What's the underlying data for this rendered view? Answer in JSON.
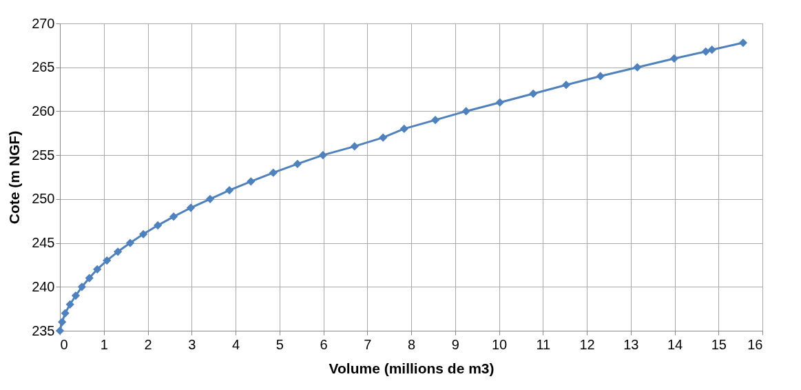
{
  "chart_data": {
    "type": "line",
    "xlabel": "Volume (millions de m3)",
    "ylabel": "Cote (m NGF)",
    "x": [
      0,
      0.05,
      0.12,
      0.23,
      0.36,
      0.5,
      0.67,
      0.85,
      1.07,
      1.32,
      1.6,
      1.9,
      2.23,
      2.59,
      2.98,
      3.42,
      3.86,
      4.35,
      4.86,
      5.41,
      5.99,
      6.71,
      7.36,
      7.84,
      8.55,
      9.25,
      10.02,
      10.78,
      11.53,
      12.31,
      13.15,
      13.99,
      14.71,
      14.85,
      15.56
    ],
    "series": [
      {
        "color": "#4f81bd",
        "values": [
          235,
          236,
          237,
          238,
          239,
          240,
          241,
          242,
          243,
          244,
          245,
          246,
          247,
          248,
          249,
          250,
          251,
          252,
          253,
          254,
          255,
          256,
          257,
          258,
          259,
          260,
          261,
          262,
          263,
          264,
          265,
          266,
          266.8,
          267,
          267.8
        ]
      }
    ],
    "xlim": [
      0,
      16
    ],
    "xticks": [
      0,
      1,
      2,
      3,
      4,
      5,
      6,
      7,
      8,
      9,
      10,
      11,
      12,
      13,
      14,
      15,
      16
    ],
    "ylim": [
      235,
      270
    ],
    "yticks": [
      235,
      240,
      245,
      250,
      255,
      260,
      265,
      270
    ],
    "grid": true,
    "marker": "diamond",
    "line_style": "solid"
  }
}
